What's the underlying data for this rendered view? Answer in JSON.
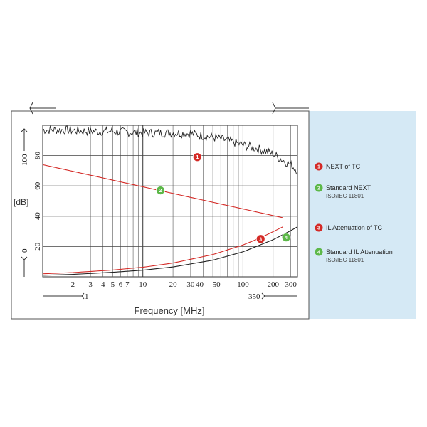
{
  "chart_data": {
    "type": "line",
    "title": "",
    "xlabel": "Frequency [MHz]",
    "ylabel": "[dB]",
    "x_scale": "log",
    "xlim": [
      1,
      350
    ],
    "ylim": [
      0,
      100
    ],
    "grid": true,
    "legend_placement": "right",
    "x_range_labels": [
      "1",
      "350"
    ],
    "y_range_labels": [
      "0",
      "100"
    ],
    "x_ticks": [
      {
        "value": 2,
        "label": "2"
      },
      {
        "value": 3,
        "label": "3"
      },
      {
        "value": 4,
        "label": "4"
      },
      {
        "value": 5,
        "label": "5"
      },
      {
        "value": 6,
        "label": "6"
      },
      {
        "value": 7,
        "label": "7"
      },
      {
        "value": 10,
        "label": "10"
      },
      {
        "value": 20,
        "label": "20"
      },
      {
        "value": 30,
        "label": "30"
      },
      {
        "value": 40,
        "label": "40"
      },
      {
        "value": 50,
        "label": "50"
      },
      {
        "value": 100,
        "label": "100"
      },
      {
        "value": 200,
        "label": "200"
      },
      {
        "value": 300,
        "label": "300"
      }
    ],
    "y_ticks": [
      {
        "value": 20,
        "label": "20"
      },
      {
        "value": 40,
        "label": "40"
      },
      {
        "value": 60,
        "label": "60"
      },
      {
        "value": 80,
        "label": "80"
      }
    ],
    "series": [
      {
        "name": "NEXT of TC",
        "number": "1",
        "color": "#222222",
        "marker_color": "#d42a26",
        "marker_point": [
          35,
          79
        ],
        "x": [
          1,
          1.5,
          2,
          3,
          5,
          7,
          10,
          15,
          20,
          30,
          50,
          70,
          100,
          150,
          200,
          250,
          300,
          350
        ],
        "y": [
          97,
          97,
          96.5,
          96,
          96,
          95.5,
          95,
          95,
          95,
          94.5,
          92,
          90,
          87,
          84,
          81,
          77,
          74,
          70
        ]
      },
      {
        "name": "Standard NEXT",
        "subtitle": "ISO/IEC 11801",
        "number": "2",
        "color": "#d42a26",
        "marker_color": "#5db849",
        "marker_point": [
          15,
          57
        ],
        "x": [
          1,
          250
        ],
        "y": [
          74,
          39
        ]
      },
      {
        "name": "IL Attenuation of TC",
        "number": "3",
        "color": "#d42a26",
        "marker_color": "#d42a26",
        "marker_point": [
          150,
          25
        ],
        "x": [
          1,
          2,
          5,
          10,
          20,
          50,
          100,
          150,
          200,
          250
        ],
        "y": [
          2,
          2.8,
          4.5,
          6.3,
          9.1,
          14.7,
          21,
          25.8,
          29.8,
          33
        ]
      },
      {
        "name": "Standard IL Attenuation",
        "subtitle": "ISO/IEC 11801",
        "number": "4",
        "color": "#222222",
        "marker_color": "#5db849",
        "marker_point": [
          270,
          26
        ],
        "x": [
          1,
          2,
          5,
          10,
          20,
          50,
          100,
          200,
          300,
          350
        ],
        "y": [
          1,
          1.6,
          3,
          4.4,
          6.5,
          11,
          16.5,
          24.5,
          30.5,
          33
        ]
      }
    ]
  }
}
